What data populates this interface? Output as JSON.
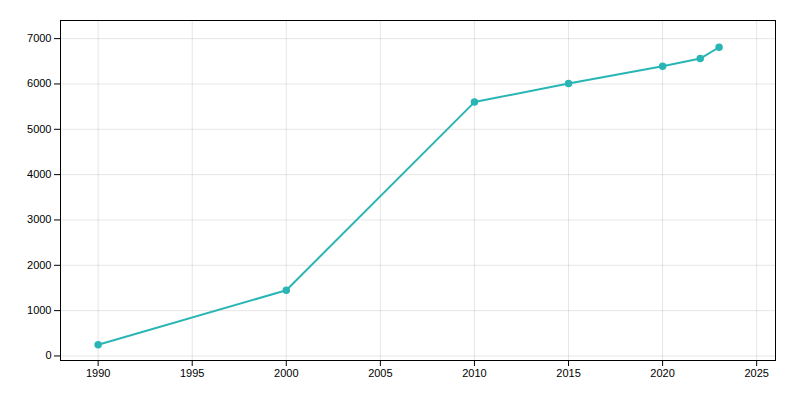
{
  "chart_data": {
    "type": "line",
    "x": [
      1990,
      2000,
      2010,
      2015,
      2020,
      2022,
      2023
    ],
    "values": [
      247,
      1450,
      5600,
      6010,
      6390,
      6560,
      6810
    ],
    "color": "#2ab5b5",
    "marker": "circle",
    "xlim": [
      1988,
      2026
    ],
    "ylim": [
      -100,
      7400
    ],
    "xticks": [
      1990,
      1995,
      2000,
      2005,
      2010,
      2015,
      2020,
      2025
    ],
    "yticks": [
      0,
      1000,
      2000,
      3000,
      4000,
      5000,
      6000,
      7000
    ],
    "grid": true
  }
}
